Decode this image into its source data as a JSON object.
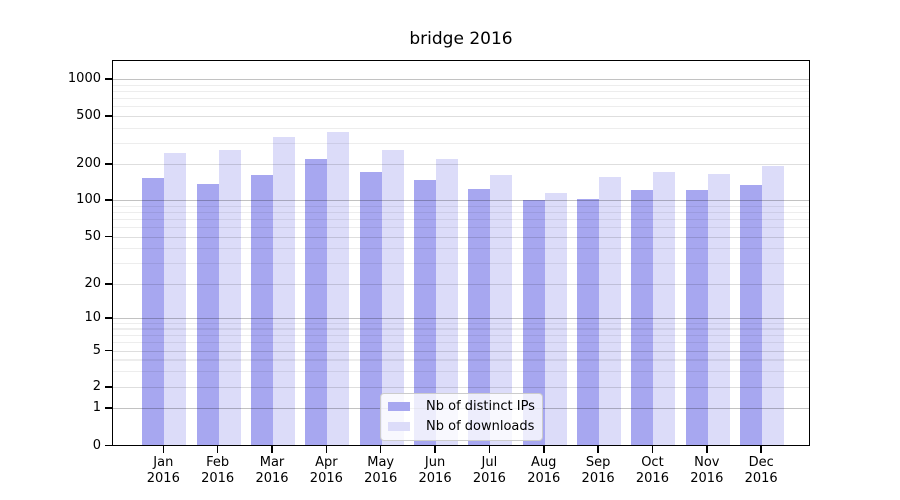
{
  "title": "bridge 2016",
  "chart_data": {
    "type": "bar",
    "title": "bridge 2016",
    "yscale": "symlog",
    "ylim": [
      0,
      1500
    ],
    "grid": true,
    "legend_position": "lower center",
    "xlabel": "",
    "ylabel": "",
    "year": "2016",
    "months": [
      "Jan",
      "Feb",
      "Mar",
      "Apr",
      "May",
      "Jun",
      "Jul",
      "Aug",
      "Sep",
      "Oct",
      "Nov",
      "Dec"
    ],
    "categories": [
      "Jan 2016",
      "Feb 2016",
      "Mar 2016",
      "Apr 2016",
      "May 2016",
      "Jun 2016",
      "Jul 2016",
      "Aug 2016",
      "Sep 2016",
      "Oct 2016",
      "Nov 2016",
      "Dec 2016"
    ],
    "yticks": [
      0,
      1,
      2,
      5,
      10,
      20,
      50,
      100,
      200,
      500,
      1000
    ],
    "series": [
      {
        "name": "Nb of distinct IPs",
        "color": "#a7a7f0",
        "values": [
          152,
          137,
          162,
          220,
          171,
          146,
          123,
          100,
          101,
          121,
          122,
          133
        ]
      },
      {
        "name": "Nb of downloads",
        "color": "#dcdcf9",
        "values": [
          248,
          262,
          335,
          365,
          260,
          221,
          163,
          115,
          156,
          171,
          166,
          191
        ]
      }
    ]
  },
  "legend": {
    "items": [
      {
        "label": "Nb of distinct IPs",
        "color": "#a7a7f0"
      },
      {
        "label": "Nb of downloads",
        "color": "#dcdcf9"
      }
    ]
  }
}
